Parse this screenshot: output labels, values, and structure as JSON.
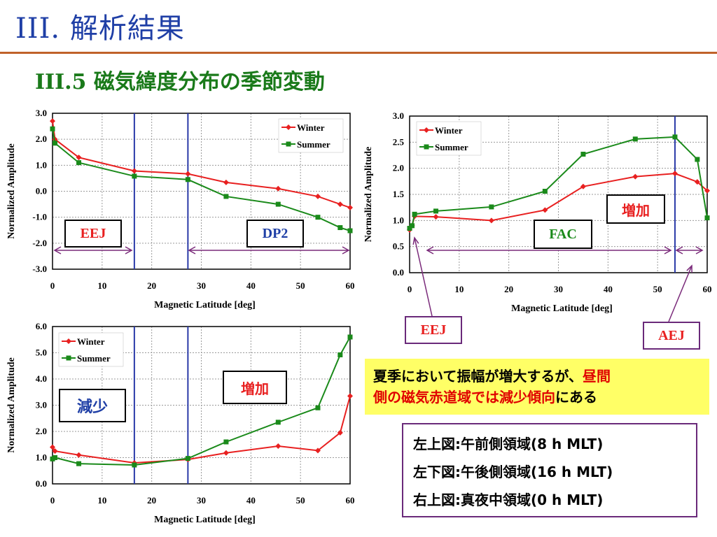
{
  "slide": {
    "title": "III. 解析結果",
    "subtitle": "III.5 磁気緯度分布の季節変動"
  },
  "colors": {
    "winter": "#e82020",
    "summer": "#1a8a1a",
    "vline": "#2a3aa8",
    "arrow": "#7a2a7a",
    "title": "#1f3fa6"
  },
  "chart_data": [
    {
      "id": "top-left",
      "type": "line",
      "xlabel": "Magnetic Latitude [deg]",
      "ylabel": "Normalized Amplitude",
      "xlim": [
        0,
        60
      ],
      "ylim": [
        -3.0,
        3.0
      ],
      "xticks": [
        0,
        10,
        20,
        30,
        40,
        50,
        60
      ],
      "yticks": [
        "-3.0",
        "-2.0",
        "-1.0",
        "0.0",
        "1.0",
        "2.0",
        "3.0"
      ],
      "grid": true,
      "legend": "top-right",
      "vlines": [
        16.5,
        27.3
      ],
      "series": [
        {
          "name": "Winter",
          "x": [
            0,
            0.5,
            5.3,
            16.5,
            27.3,
            35,
            45.5,
            53.5,
            58,
            60
          ],
          "y": [
            2.7,
            2.0,
            1.3,
            0.78,
            0.67,
            0.34,
            0.1,
            -0.2,
            -0.5,
            -0.63
          ]
        },
        {
          "name": "Summer",
          "x": [
            0,
            0.5,
            5.3,
            16.5,
            27.3,
            35,
            45.5,
            53.5,
            58,
            60
          ],
          "y": [
            2.4,
            1.85,
            1.1,
            0.58,
            0.45,
            -0.2,
            -0.5,
            -1.0,
            -1.4,
            -1.52
          ]
        }
      ]
    },
    {
      "id": "top-right",
      "type": "line",
      "xlabel": "Magnetic Latitude [deg]",
      "ylabel": "Normalized Amplitude",
      "xlim": [
        0,
        60
      ],
      "ylim": [
        0.0,
        3.0
      ],
      "xticks": [
        0,
        10,
        20,
        30,
        40,
        50,
        60
      ],
      "yticks": [
        "0.0",
        "0.5",
        "1.0",
        "1.5",
        "2.0",
        "2.5",
        "3.0"
      ],
      "grid": true,
      "legend": "top-left",
      "vlines": [
        53.5
      ],
      "series": [
        {
          "name": "Winter",
          "x": [
            0,
            0.5,
            1,
            5.3,
            16.5,
            27.3,
            35,
            45.5,
            53.5,
            58,
            60
          ],
          "y": [
            0.82,
            0.9,
            1.08,
            1.07,
            1.0,
            1.2,
            1.65,
            1.84,
            1.9,
            1.74,
            1.57
          ]
        },
        {
          "name": "Summer",
          "x": [
            0,
            0.5,
            1,
            5.3,
            16.5,
            27.3,
            35,
            45.5,
            53.5,
            58,
            60
          ],
          "y": [
            0.85,
            0.9,
            1.12,
            1.18,
            1.26,
            1.56,
            2.27,
            2.56,
            2.6,
            2.17,
            1.05
          ]
        }
      ]
    },
    {
      "id": "bottom-left",
      "type": "line",
      "xlabel": "Magnetic Latitude [deg]",
      "ylabel": "Normalized Amplitude",
      "xlim": [
        0,
        60
      ],
      "ylim": [
        0.0,
        6.0
      ],
      "xticks": [
        0,
        10,
        20,
        30,
        40,
        50,
        60
      ],
      "yticks": [
        "0.0",
        "1.0",
        "2.0",
        "3.0",
        "4.0",
        "5.0",
        "6.0"
      ],
      "grid": true,
      "legend": "top-left",
      "vlines": [
        16.5,
        27.3
      ],
      "series": [
        {
          "name": "Winter",
          "x": [
            0,
            0.5,
            5.3,
            16.5,
            27.3,
            35,
            45.5,
            53.5,
            58,
            60
          ],
          "y": [
            1.4,
            1.25,
            1.1,
            0.8,
            0.93,
            1.18,
            1.44,
            1.27,
            1.95,
            3.35
          ]
        },
        {
          "name": "Summer",
          "x": [
            0,
            0.5,
            5.3,
            16.5,
            27.3,
            35,
            45.5,
            53.5,
            58,
            60
          ],
          "y": [
            0.95,
            1.0,
            0.77,
            0.72,
            0.97,
            1.6,
            2.35,
            2.9,
            4.92,
            5.6
          ]
        }
      ]
    }
  ],
  "annotations": {
    "tl_eej": "EEJ",
    "tl_dp2": "DP2",
    "tr_zouka": "増加",
    "tr_fac": "FAC",
    "tr_eej": "EEJ",
    "tr_aej": "AEJ",
    "bl_genshou": "減少",
    "bl_zouka": "増加"
  },
  "note": {
    "line1_a": "夏季において振幅が増大するが、",
    "line1_b": "昼間",
    "line2_a": "側の磁気赤道域では減少傾向",
    "line2_b": "にある"
  },
  "legend_box": [
    "左上図:午前側領域(8 h MLT)",
    "左下図:午後側領域(16 h MLT)",
    "右上図:真夜中領域(0 h MLT)"
  ]
}
